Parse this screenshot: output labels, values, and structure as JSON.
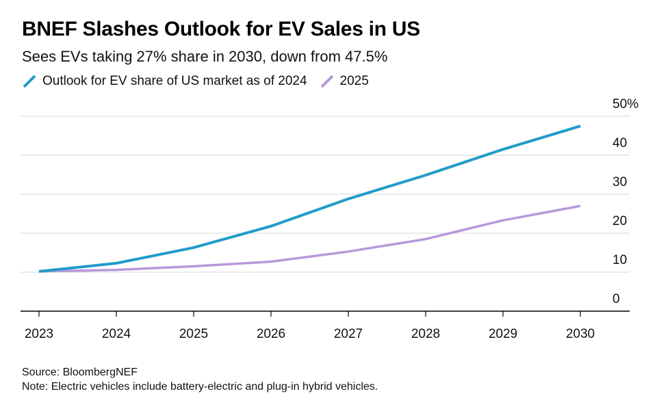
{
  "header": {
    "title": "BNEF Slashes Outlook for EV Sales in US",
    "subtitle": "Sees EVs taking 27% share in 2030, down from 47.5%"
  },
  "chart_data": {
    "type": "line",
    "title": "BNEF Slashes Outlook for EV Sales in US",
    "subtitle": "Sees EVs taking 27% share in 2030, down from 47.5%",
    "x": [
      2023,
      2024,
      2025,
      2026,
      2027,
      2028,
      2029,
      2030
    ],
    "x_tick_labels": [
      "2023",
      "2024",
      "2025",
      "2026",
      "2027",
      "2028",
      "2029",
      "2030"
    ],
    "y_tick_labels": [
      "50%",
      "40",
      "30",
      "20",
      "10",
      "0"
    ],
    "y_ticks": [
      50,
      40,
      30,
      20,
      10,
      0
    ],
    "ylim": [
      0,
      50
    ],
    "y_axis_side": "right",
    "grid": true,
    "legend_position": "top-left",
    "series": [
      {
        "name": "Outlook for EV share of US market as of 2024",
        "color": "#1f9cc9",
        "values": [
          10.2,
          12.3,
          16.3,
          21.8,
          28.8,
          34.9,
          41.5,
          47.5
        ]
      },
      {
        "name": "2025",
        "color": "#b898dc",
        "values": [
          10.2,
          10.6,
          11.5,
          12.7,
          15.3,
          18.5,
          23.3,
          27.0
        ]
      }
    ]
  },
  "footer": {
    "source": "Source: BloombergNEF",
    "note": "Note: Electric vehicles include battery-electric and plug-in hybrid vehicles."
  }
}
